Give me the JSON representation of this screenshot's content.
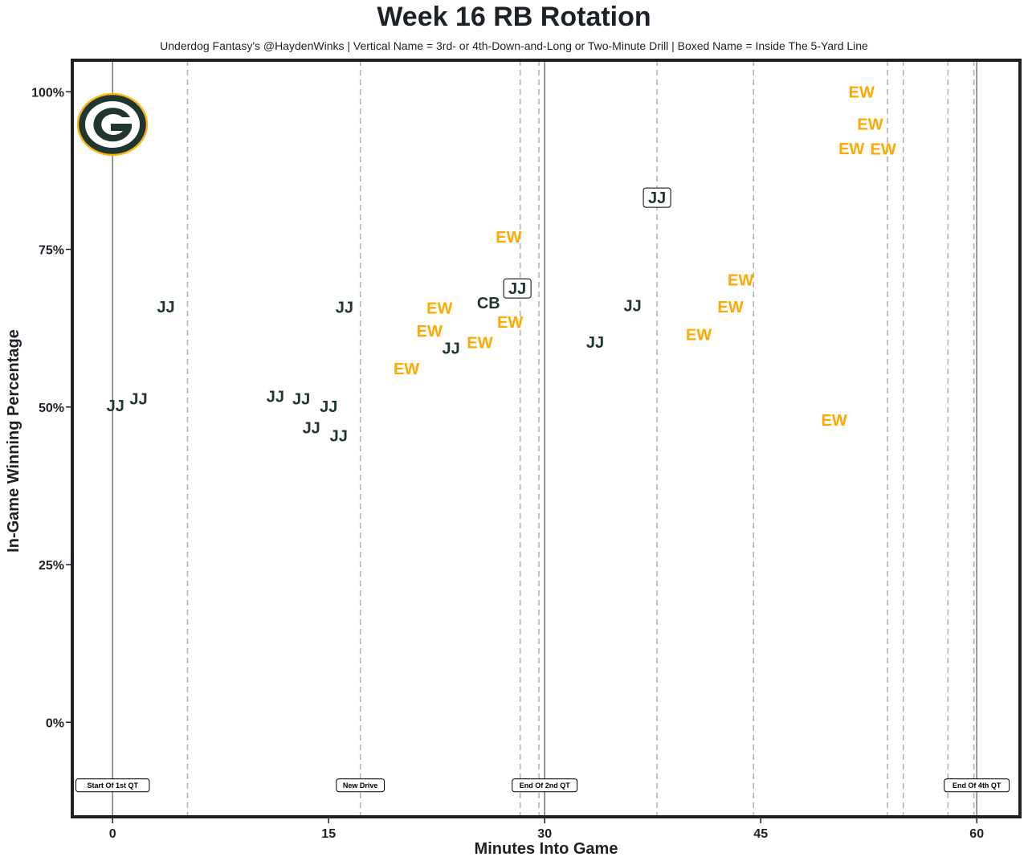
{
  "chart_data": {
    "type": "scatter",
    "title": "Week 16 RB Rotation",
    "subtitle": "Underdog Fantasy's @HaydenWinks | Vertical Name = 3rd- or 4th-Down-and-Long or Two-Minute Drill | Boxed Name = Inside The 5-Yard Line",
    "xlabel": "Minutes Into Game",
    "ylabel": "In-Game Winning Percentage",
    "xlim": [
      -2.8,
      63
    ],
    "ylim": [
      -15,
      105
    ],
    "xticks": [
      0,
      15,
      30,
      45,
      60
    ],
    "xtick_labels": [
      "0",
      "15",
      "30",
      "45",
      "60"
    ],
    "yticks": [
      0,
      25,
      50,
      75,
      100
    ],
    "ytick_labels": [
      "0%",
      "25%",
      "50%",
      "75%",
      "100%"
    ],
    "grid": false,
    "colors": {
      "JJ": "#203731",
      "CB": "#203731",
      "EW": "#FFA800",
      "frame": "#1c2128"
    },
    "logo": "green-bay-packers-g-logo",
    "points": [
      {
        "label": "JJ",
        "x": 3.7,
        "y": 65.9,
        "boxed": false
      },
      {
        "label": "JJ",
        "x": 0.2,
        "y": 50.2,
        "boxed": false
      },
      {
        "label": "JJ",
        "x": 1.8,
        "y": 51.3,
        "boxed": false
      },
      {
        "label": "JJ",
        "x": 11.3,
        "y": 51.7,
        "boxed": false
      },
      {
        "label": "JJ",
        "x": 13.1,
        "y": 51.3,
        "boxed": false
      },
      {
        "label": "JJ",
        "x": 13.8,
        "y": 46.7,
        "boxed": false
      },
      {
        "label": "JJ",
        "x": 15.0,
        "y": 47.4,
        "boxed": false
      },
      {
        "label": "JJ",
        "x": 15.7,
        "y": 48.1,
        "boxed": false
      },
      {
        "label": "JJ",
        "x": 16.1,
        "y": 65.8,
        "boxed": false
      },
      {
        "label": "EW",
        "x": 20.4,
        "y": 56.1,
        "boxed": false
      },
      {
        "label": "EW",
        "x": 22.0,
        "y": 62.1,
        "boxed": false
      },
      {
        "label": "EW",
        "x": 22.7,
        "y": 63.0,
        "boxed": false
      },
      {
        "label": "JJ",
        "x": 23.5,
        "y": 59.3,
        "boxed": false
      },
      {
        "label": "EW",
        "x": 25.5,
        "y": 60.2,
        "boxed": false
      },
      {
        "label": "CB",
        "x": 26.1,
        "y": 66.5,
        "boxed": false
      },
      {
        "label": "EW",
        "x": 27.6,
        "y": 63.5,
        "boxed": false
      },
      {
        "label": "EW",
        "x": 27.5,
        "y": 77.0,
        "boxed": false
      },
      {
        "label": "JJ",
        "x": 28.1,
        "y": 68.8,
        "boxed": true
      },
      {
        "label": "JJ",
        "x": 33.5,
        "y": 60.3,
        "boxed": false
      },
      {
        "label": "JJ",
        "x": 36.1,
        "y": 66.1,
        "boxed": false
      },
      {
        "label": "JJ",
        "x": 37.8,
        "y": 83.2,
        "boxed": true
      },
      {
        "label": "EW",
        "x": 40.7,
        "y": 61.5,
        "boxed": false
      },
      {
        "label": "EW",
        "x": 42.9,
        "y": 65.9,
        "boxed": false
      },
      {
        "label": "EW",
        "x": 43.6,
        "y": 67.5,
        "boxed": false
      },
      {
        "label": "EW",
        "x": 50.1,
        "y": 47.9,
        "boxed": false
      },
      {
        "label": "EW",
        "x": 51.3,
        "y": 91.0,
        "boxed": false
      },
      {
        "label": "EW",
        "x": 52.0,
        "y": 100.0,
        "boxed": false
      },
      {
        "label": "EW",
        "x": 52.6,
        "y": 94.9,
        "boxed": false
      },
      {
        "label": "EW",
        "x": 53.5,
        "y": 96.3,
        "boxed": false
      }
    ],
    "solid_vlines": [
      0,
      30,
      60
    ],
    "dashed_vlines": [
      5.2,
      17.2,
      28.3,
      29.6,
      37.8,
      44.5,
      53.8,
      54.9,
      58.0,
      59.8
    ],
    "annotations": [
      {
        "text": "Start Of 1st QT",
        "x": 0,
        "y": -10
      },
      {
        "text": "New Drive",
        "x": 17.2,
        "y": -10
      },
      {
        "text": "End Of 2nd QT",
        "x": 30,
        "y": -10
      },
      {
        "text": "End Of 4th QT",
        "x": 60,
        "y": -10
      }
    ]
  }
}
